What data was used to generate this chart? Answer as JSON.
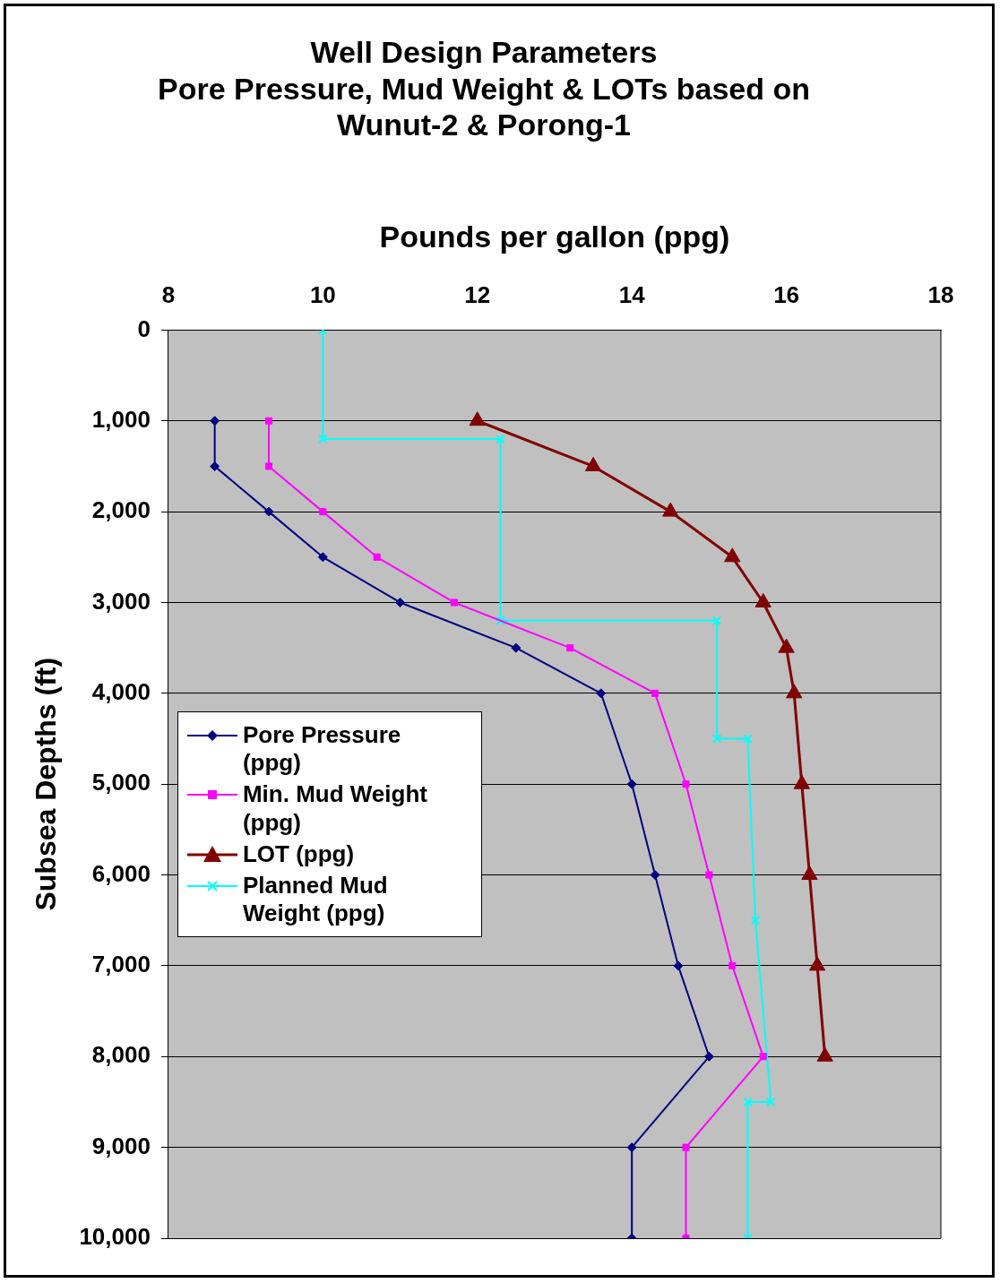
{
  "chart_data": {
    "type": "line",
    "title": "Well Design Parameters\nPore Pressure, Mud Weight & LOTs based on\nWunut-2 & Porong-1",
    "xlabel": "Pounds per gallon (ppg)",
    "ylabel": "Subsea Depths (ft)",
    "xlim": [
      8,
      18
    ],
    "xticks": [
      8,
      10,
      12,
      14,
      16,
      18
    ],
    "ylim": [
      10000,
      0
    ],
    "yticks": [
      0,
      {
        "value": 1000,
        "label": "1,000"
      },
      {
        "value": 2000,
        "label": "2,000"
      },
      {
        "value": 3000,
        "label": "3,000"
      },
      {
        "value": 4000,
        "label": "4,000"
      },
      {
        "value": 5000,
        "label": "5,000"
      },
      {
        "value": 6000,
        "label": "6,000"
      },
      {
        "value": 7000,
        "label": "7,000"
      },
      {
        "value": 8000,
        "label": "8,000"
      },
      {
        "value": 9000,
        "label": "9,000"
      },
      {
        "value": 10000,
        "label": "10,000"
      }
    ],
    "grid": "y",
    "legend": "left",
    "line_style": "solid",
    "series": [
      {
        "name": "Pore Pressure (ppg)",
        "color": "#000080",
        "marker": "diamond",
        "x": [
          8.6,
          8.6,
          9.3,
          10,
          11,
          12.5,
          13.6,
          14,
          14.3,
          14.6,
          15,
          14,
          14
        ],
        "values": [
          1000,
          1500,
          2000,
          2500,
          3000,
          3500,
          4000,
          5000,
          6000,
          7000,
          8000,
          9000,
          10000
        ]
      },
      {
        "name": "Min. Mud Weight (ppg)",
        "color": "#ff00ff",
        "marker": "square",
        "x": [
          9.3,
          9.3,
          10,
          10.7,
          11.7,
          13.2,
          14.3,
          14.7,
          15,
          15.3,
          15.7,
          14.7,
          14.7
        ],
        "values": [
          1000,
          1500,
          2000,
          2500,
          3000,
          3500,
          4000,
          5000,
          6000,
          7000,
          8000,
          9000,
          10000
        ]
      },
      {
        "name": "LOT (ppg)",
        "color": "#800000",
        "marker": "triangle",
        "x": [
          12,
          13.5,
          14.5,
          15.3,
          15.7,
          16,
          16.1,
          16.2,
          16.3,
          16.4,
          16.5
        ],
        "values": [
          1000,
          1500,
          2000,
          2500,
          3000,
          3500,
          4000,
          5000,
          6000,
          7000,
          8000
        ]
      },
      {
        "name": "Planned Mud Weight (ppg)",
        "color": "#00ffff",
        "marker": "cross",
        "x": [
          10,
          10,
          12.3,
          12.3,
          15.1,
          15.1,
          15.5,
          15.6,
          15.8,
          15.5,
          15.5
        ],
        "values": [
          0,
          1200,
          1200,
          3200,
          3200,
          4500,
          4500,
          6500,
          8500,
          8500,
          10000
        ]
      }
    ]
  }
}
